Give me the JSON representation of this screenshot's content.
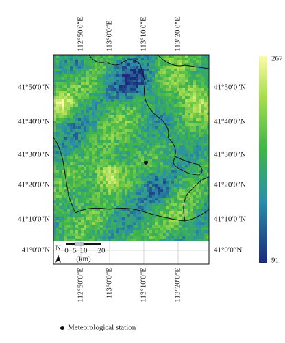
{
  "map": {
    "top_longitude_labels": [
      "112°50′0″E",
      "113°0′0″E",
      "113°10′0″E",
      "113°20′0″E"
    ],
    "bottom_longitude_labels": [
      "112°50′0″E",
      "113°0′0″E",
      "113°10′0″E",
      "113°20′0″E"
    ],
    "left_latitude_labels": [
      "41°50′0″N",
      "41°40′0″N",
      "41°30′0″N",
      "41°20′0″N",
      "41°10′0″N",
      "41°0′0″N"
    ],
    "right_latitude_labels": [
      "41°50′0″N",
      "41°40′0″N",
      "41°30′0″N",
      "41°20′0″N",
      "41°10′0″N",
      "41°0′0″N"
    ],
    "colorbar": {
      "max": 267,
      "min": 91
    },
    "scale_bar": {
      "north": "N",
      "labels": [
        "0",
        "5",
        "10",
        "20"
      ],
      "unit": "(km)"
    },
    "legend": {
      "label": "Meteorological station"
    }
  }
}
